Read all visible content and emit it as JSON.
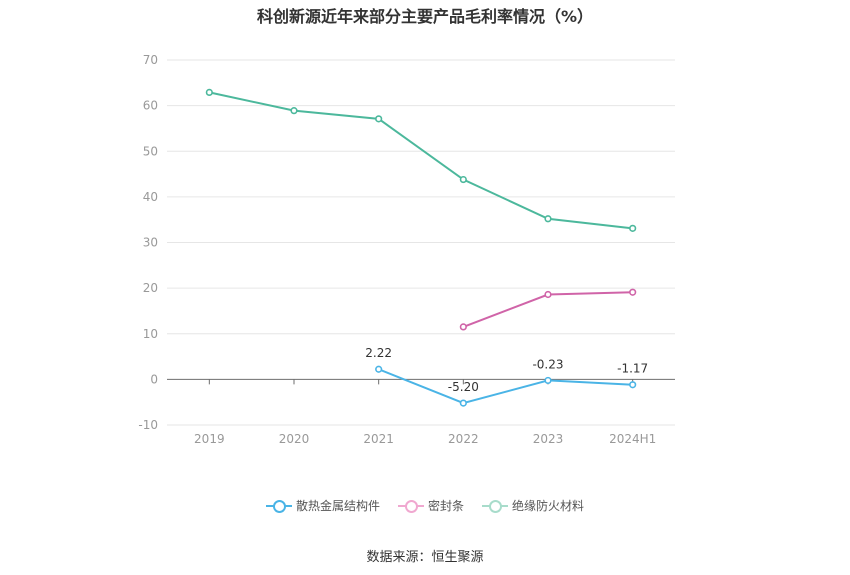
{
  "chart_data": {
    "type": "line",
    "title": "科创新源近年来部分主要产品毛利率情况（%）",
    "categories": [
      "2019",
      "2020",
      "2021",
      "2022",
      "2023",
      "2024H1"
    ],
    "ylim": [
      -10,
      70
    ],
    "yticks": [
      -10,
      0,
      10,
      20,
      30,
      40,
      50,
      60,
      70
    ],
    "series": [
      {
        "name": "散热金属结构件",
        "color": "#4ab4e6",
        "values": [
          null,
          null,
          2.22,
          -5.2,
          -0.23,
          -1.17
        ],
        "labels": [
          null,
          null,
          "2.22",
          "-5.20",
          "-0.23",
          "-1.17"
        ]
      },
      {
        "name": "密封条",
        "color": "#d064a8",
        "values": [
          null,
          null,
          null,
          11.5,
          18.6,
          19.1
        ]
      },
      {
        "name": "绝缘防火材料",
        "color": "#4cb89c",
        "values": [
          62.9,
          58.9,
          57.1,
          43.8,
          35.2,
          33.1
        ]
      }
    ],
    "legend_position": "bottom",
    "source": "数据来源：恒生聚源"
  }
}
